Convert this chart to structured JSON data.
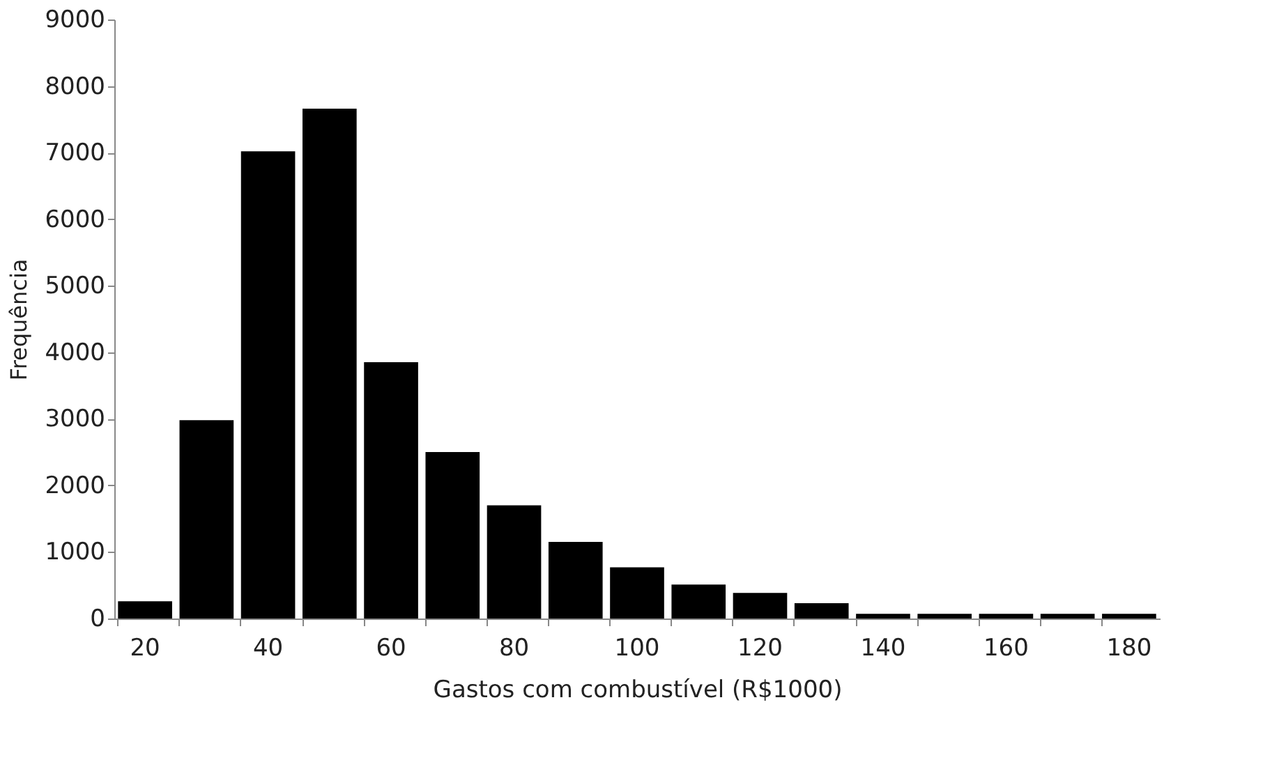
{
  "chart_data": {
    "type": "bar",
    "categories": [
      "20",
      null,
      "40",
      null,
      "60",
      null,
      "80",
      null,
      "100",
      null,
      "120",
      null,
      "140",
      null,
      "160",
      null,
      "180"
    ],
    "values": [
      260,
      2980,
      7020,
      7660,
      3850,
      2500,
      1700,
      1150,
      770,
      510,
      385,
      230,
      70,
      70,
      70,
      70,
      70
    ],
    "color": "#000000",
    "xlabel": "Gastos com combustível (R$1000)",
    "ylabel": "Frequência",
    "ylim": [
      0,
      9000
    ],
    "yticks": [
      0,
      1000,
      2000,
      3000,
      4000,
      5000,
      6000,
      7000,
      8000,
      9000
    ],
    "grid": false
  }
}
